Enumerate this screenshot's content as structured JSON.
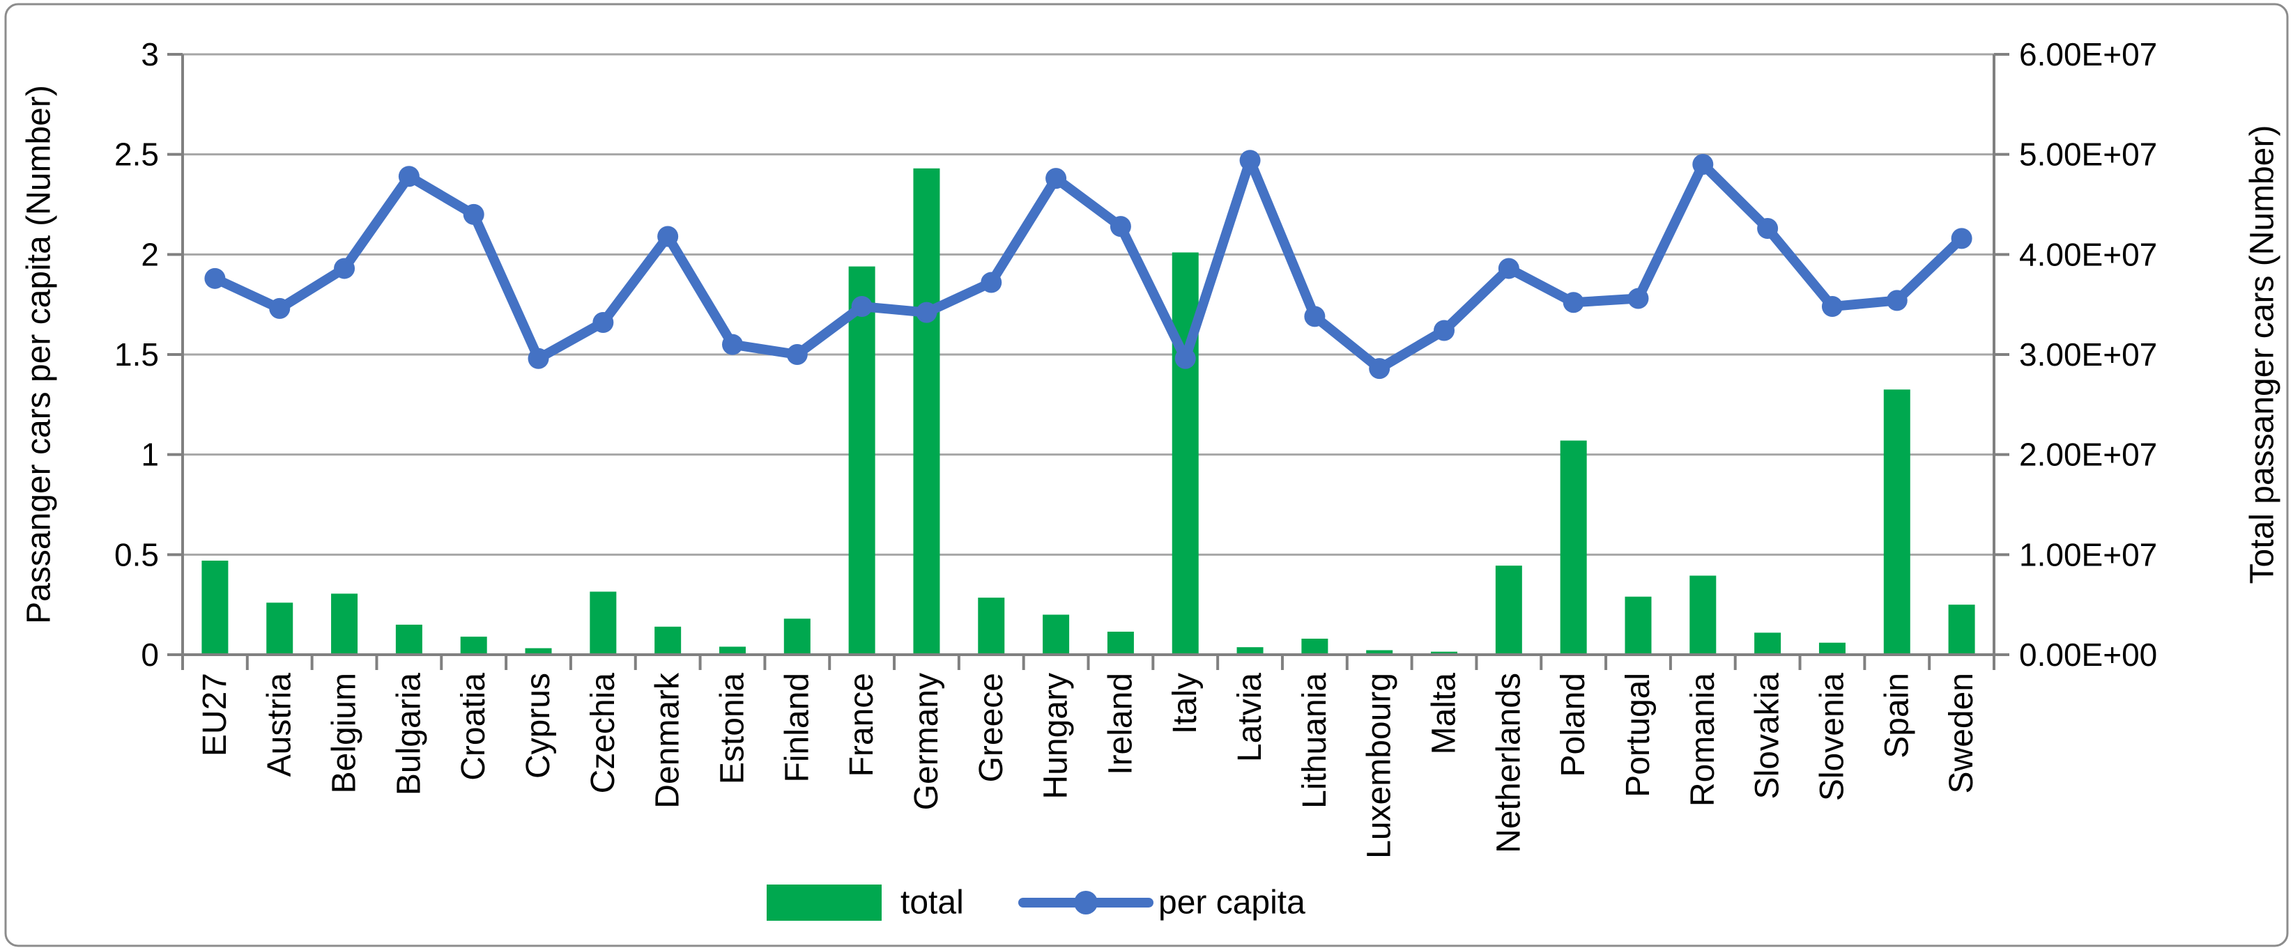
{
  "chart_data": {
    "type": "combo-bar-line",
    "categories": [
      "EU27",
      "Austria",
      "Belgium",
      "Bulgaria",
      "Croatia",
      "Cyprus",
      "Czechia",
      "Denmark",
      "Estonia",
      "Finland",
      "France",
      "Germany",
      "Greece",
      "Hungary",
      "Ireland",
      "Italy",
      "Latvia",
      "Lithuania",
      "Luxembourg",
      "Malta",
      "Netherlands",
      "Poland",
      "Portugal",
      "Romania",
      "Slovakia",
      "Slovenia",
      "Spain",
      "Sweden"
    ],
    "series": [
      {
        "name": "total",
        "type": "bar",
        "axis": "right",
        "color": "#00A84F",
        "values": [
          9400000,
          5200000,
          6100000,
          3000000,
          1800000,
          650000,
          6300000,
          2800000,
          800000,
          3600000,
          38800000,
          48600000,
          5700000,
          4000000,
          2300000,
          40200000,
          750000,
          1600000,
          450000,
          300000,
          8900000,
          21400000,
          5800000,
          7900000,
          2200000,
          1200000,
          26500000,
          5000000
        ]
      },
      {
        "name": "per capita",
        "type": "line",
        "axis": "left",
        "color": "#4472C4",
        "values": [
          1.88,
          1.73,
          1.93,
          2.39,
          2.2,
          1.48,
          1.66,
          2.09,
          1.55,
          1.5,
          1.74,
          1.71,
          1.86,
          2.38,
          2.14,
          1.48,
          2.47,
          1.69,
          1.43,
          1.62,
          1.93,
          1.76,
          1.78,
          2.45,
          2.13,
          1.74,
          1.77,
          2.08
        ]
      }
    ],
    "left_axis": {
      "label": "Passanger cars per capita (Number)",
      "min": 0,
      "max": 3,
      "tick_step": 0.5,
      "tick_labels": [
        "0",
        "0.5",
        "1",
        "1.5",
        "2",
        "2.5",
        "3"
      ]
    },
    "right_axis": {
      "label": "Total passanger cars (Number)",
      "min": 0,
      "max": 60000000,
      "tick_labels": [
        "0.00E+00",
        "1.00E+07",
        "2.00E+07",
        "3.00E+07",
        "4.00E+07",
        "5.00E+07",
        "6.00E+07"
      ]
    },
    "legend": {
      "items": [
        {
          "label": "total",
          "swatch": "bar"
        },
        {
          "label": "per capita",
          "swatch": "line-marker"
        }
      ],
      "position": "bottom-center"
    },
    "grid": true,
    "x_labels_rotation": -90
  },
  "colors": {
    "bar_green": "#00A84F",
    "line_blue": "#4472C4",
    "gridline_gray": "#A6A6A6",
    "axis_gray": "#808080",
    "frame_gray": "#8C8C8C",
    "background": "#FFFFFF",
    "text": "#000000"
  }
}
